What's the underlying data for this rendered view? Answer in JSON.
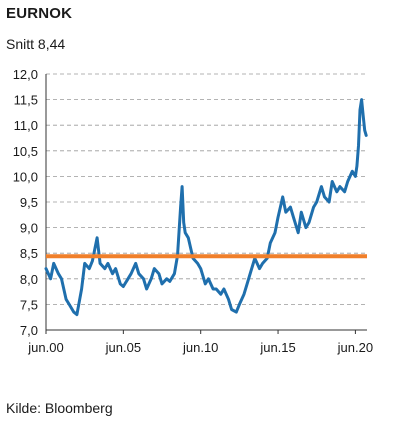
{
  "header": {
    "title": "EURNOK",
    "subtitle": "Snitt 8,44"
  },
  "footer": {
    "source": "Kilde: Bloomberg"
  },
  "colors": {
    "series": "#1f6fad",
    "average": "#f07f2a",
    "grid": "#9a9a9a"
  },
  "chart_data": {
    "type": "line",
    "title": "EURNOK",
    "subtitle": "Snitt 8,44",
    "ylim": [
      7.0,
      12.0
    ],
    "xlim": [
      2000.0,
      2020.75
    ],
    "yticks": [
      7.0,
      7.5,
      8.0,
      8.5,
      9.0,
      9.5,
      10.0,
      10.5,
      11.0,
      11.5,
      12.0
    ],
    "ytick_labels": [
      "7,0",
      "7,5",
      "8,0",
      "8,5",
      "9,0",
      "9,5",
      "10,0",
      "10,5",
      "11,0",
      "11,5",
      "12,0"
    ],
    "xticks": [
      2000.0,
      2005.0,
      2010.0,
      2015.0,
      2020.0
    ],
    "xtick_labels": [
      "jun.00",
      "jun.05",
      "jun.10",
      "jun.15",
      "jun.20"
    ],
    "grid": "horizontal dashed",
    "legend": "none",
    "series": [
      {
        "x": [
          2000.0,
          2000.3,
          2000.5,
          2000.8,
          2001.0,
          2001.3,
          2001.5,
          2001.8,
          2002.0,
          2002.3,
          2002.5,
          2002.8,
          2003.0,
          2003.3,
          2003.5,
          2003.8,
          2004.0,
          2004.3,
          2004.5,
          2004.8,
          2005.0,
          2005.3,
          2005.5,
          2005.8,
          2006.0,
          2006.3,
          2006.5,
          2006.8,
          2007.0,
          2007.3,
          2007.5,
          2007.8,
          2008.0,
          2008.3,
          2008.5,
          2008.7,
          2008.8,
          2008.9,
          2009.0,
          2009.2,
          2009.5,
          2009.8,
          2010.0,
          2010.3,
          2010.5,
          2010.8,
          2011.0,
          2011.3,
          2011.5,
          2011.8,
          2012.0,
          2012.3,
          2012.5,
          2012.8,
          2013.0,
          2013.3,
          2013.5,
          2013.8,
          2014.0,
          2014.3,
          2014.5,
          2014.8,
          2015.0,
          2015.3,
          2015.5,
          2015.8,
          2016.0,
          2016.3,
          2016.5,
          2016.8,
          2017.0,
          2017.3,
          2017.5,
          2017.8,
          2018.0,
          2018.3,
          2018.5,
          2018.8,
          2019.0,
          2019.3,
          2019.5,
          2019.8,
          2020.0,
          2020.1,
          2020.2,
          2020.3,
          2020.4,
          2020.5,
          2020.6,
          2020.7
        ],
        "values": [
          8.2,
          8.0,
          8.3,
          8.1,
          8.0,
          7.6,
          7.5,
          7.35,
          7.3,
          7.8,
          8.3,
          8.2,
          8.35,
          8.8,
          8.3,
          8.2,
          8.3,
          8.1,
          8.2,
          7.9,
          7.85,
          8.0,
          8.1,
          8.3,
          8.1,
          8.0,
          7.8,
          8.0,
          8.2,
          8.1,
          7.9,
          8.0,
          7.95,
          8.1,
          8.45,
          9.4,
          9.8,
          9.1,
          8.9,
          8.8,
          8.4,
          8.3,
          8.2,
          7.9,
          8.0,
          7.8,
          7.8,
          7.7,
          7.8,
          7.6,
          7.4,
          7.35,
          7.5,
          7.7,
          7.9,
          8.2,
          8.4,
          8.2,
          8.3,
          8.4,
          8.7,
          8.9,
          9.2,
          9.6,
          9.3,
          9.4,
          9.2,
          8.9,
          9.3,
          9.0,
          9.1,
          9.4,
          9.5,
          9.8,
          9.6,
          9.5,
          9.9,
          9.7,
          9.8,
          9.7,
          9.9,
          10.1,
          10.0,
          10.2,
          10.6,
          11.3,
          11.5,
          11.2,
          10.9,
          10.8
        ]
      }
    ],
    "reference_line": {
      "value": 8.44
    }
  }
}
